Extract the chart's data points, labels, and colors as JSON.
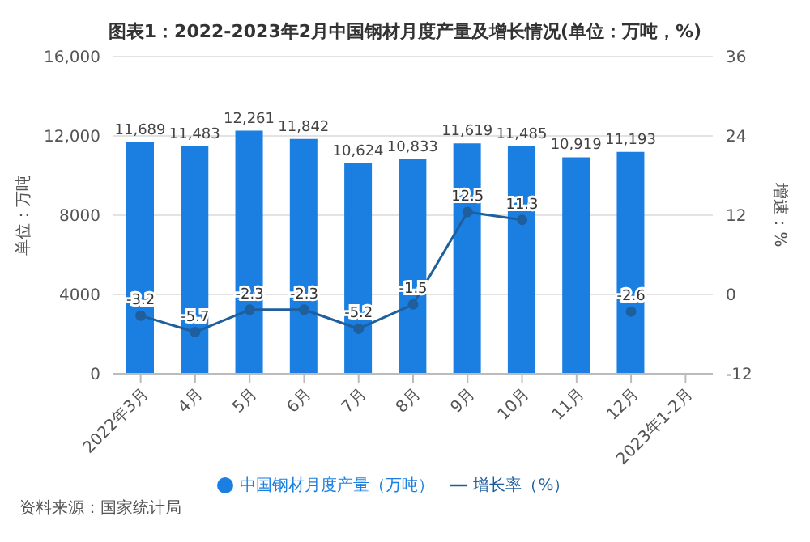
{
  "chart_data": {
    "type": "bar",
    "title": "图表1：2022-2023年2月中国钢材月度产量及增长情况(单位：万吨，%)",
    "categories": [
      "2022年3月",
      "4月",
      "5月",
      "6月",
      "7月",
      "8月",
      "9月",
      "10月",
      "11月",
      "12月",
      "2023年1-2月"
    ],
    "series": [
      {
        "name": "中国钢材月度产量（万吨）",
        "color": "#1a7fe0",
        "values": [
          11689,
          11483,
          12261,
          11842,
          10624,
          10833,
          11619,
          11485,
          10919,
          11193,
          null
        ],
        "value_labels": [
          "11,689",
          "11,483",
          "12,261",
          "11,842",
          "10,624",
          "10,833",
          "11,619",
          "11,485",
          "10,919",
          "11,193",
          null
        ]
      },
      {
        "name": "增长率（%）",
        "type": "line",
        "axis": "y2",
        "color": "#1f5f9e",
        "values": [
          -3.2,
          -5.7,
          -2.3,
          -2.3,
          -5.2,
          -1.5,
          12.5,
          11.3,
          null,
          -2.6,
          null
        ]
      }
    ],
    "ylabel": "单位：万吨",
    "y2label": "增速：%",
    "ylim": [
      0,
      16000
    ],
    "yticks": [
      0,
      4000,
      8000,
      {
        "value": 12000,
        "label": "12,000"
      },
      {
        "value": 16000,
        "label": "16,000"
      }
    ],
    "y2lim": [
      -12,
      36
    ],
    "y2ticks": [
      -12,
      0,
      12,
      24,
      36
    ],
    "grid": "y",
    "legend": "bottom",
    "marker": "circle",
    "data_labels": true,
    "annotations": [
      "资料来源：国家统计局"
    ]
  }
}
